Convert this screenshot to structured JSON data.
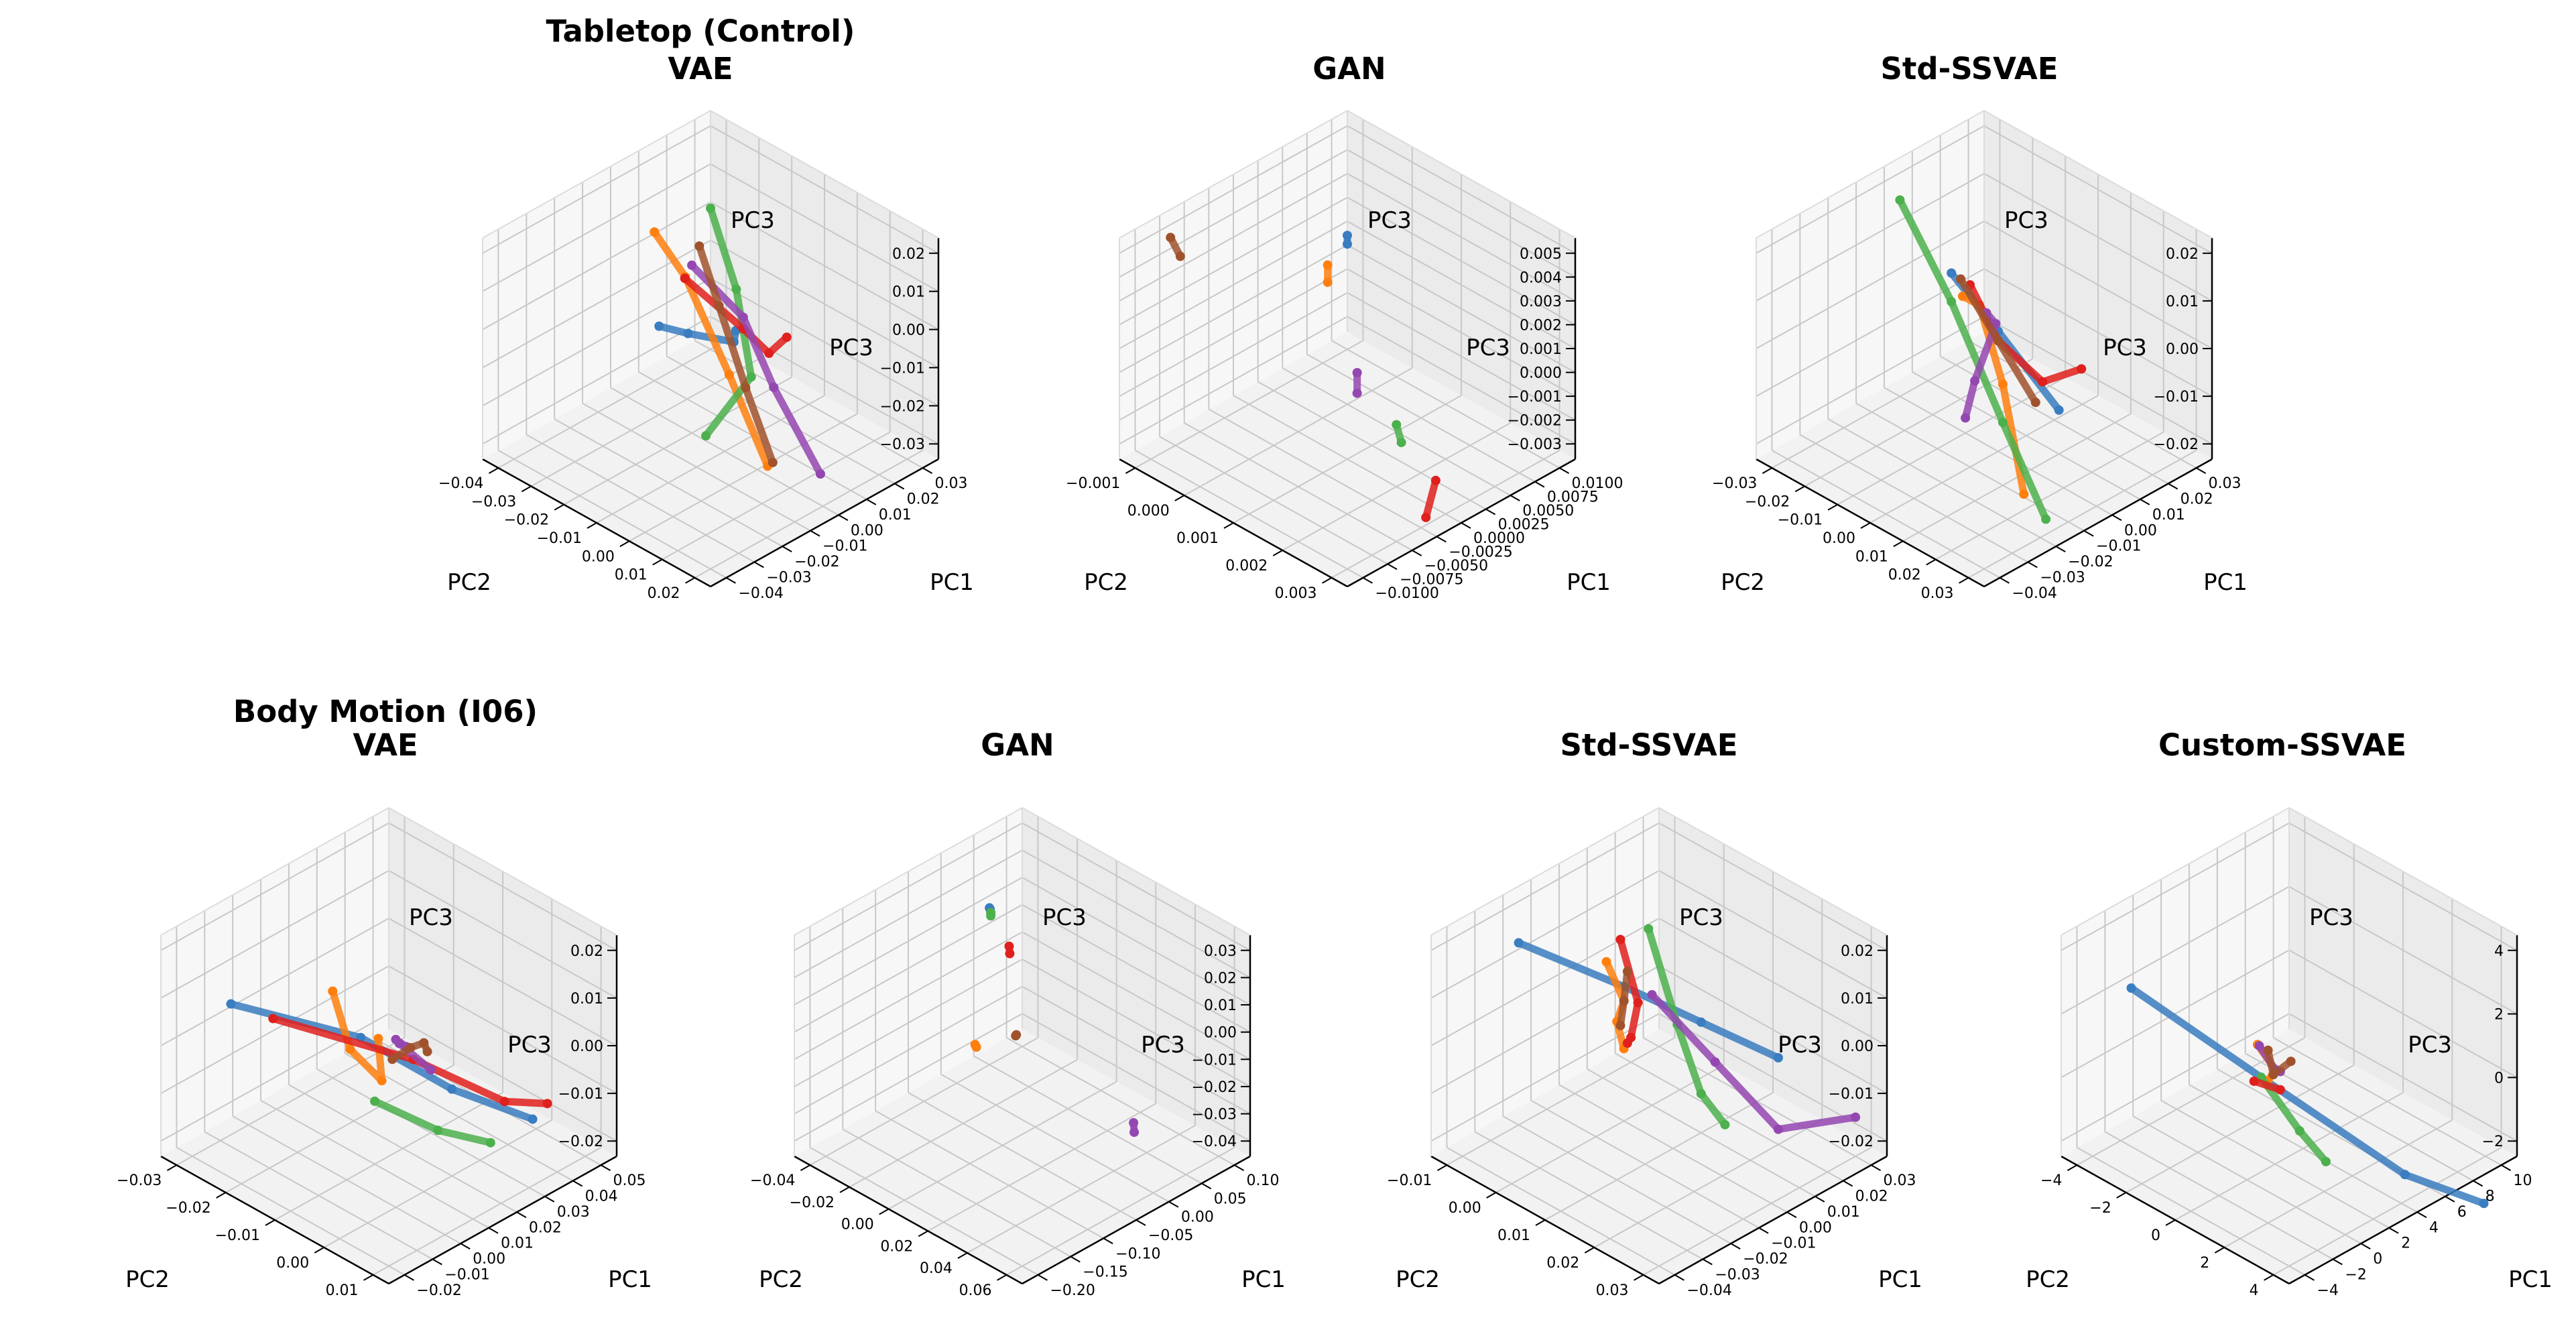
{
  "figure": {
    "row_titles": [
      "Tabletop (Control)",
      "Body Motion (I06)"
    ]
  },
  "colors": {
    "c0": "#3a7dc0",
    "c1": "#ff7f0e",
    "c2": "#4cb04c",
    "c3": "#e0201c",
    "c4": "#9447b0",
    "c5": "#a0522d",
    "pane": "#f2f2f2",
    "grid": "#c8c8c8"
  },
  "chart_data": [
    {
      "type": "scatter",
      "title": "VAE",
      "row_title": "Tabletop (Control)",
      "xlabel": "PC1",
      "ylabel": "PC2",
      "zlabel": "PC3",
      "pc1_ticks": [
        "0.03",
        "0.02",
        "0.01",
        "0.00",
        "−0.01",
        "−0.02",
        "−0.03",
        "−0.04"
      ],
      "pc2_ticks": [
        "−0.04",
        "−0.03",
        "−0.02",
        "−0.01",
        "0.00",
        "0.01",
        "0.02"
      ],
      "pc3_ticks": [
        "0.02",
        "0.01",
        "0.00",
        "−0.01",
        "−0.02",
        "−0.03"
      ],
      "series": [
        {
          "color": "c0",
          "points": [
            [
              -0.035,
              0.0,
              0.018
            ],
            [
              -0.02,
              -0.004,
              0.008
            ],
            [
              -0.006,
              -0.002,
              0.001
            ],
            [
              0.004,
              -0.01,
              -0.004
            ]
          ]
        },
        {
          "color": "c1",
          "points": [
            [
              0.01,
              -0.04,
              0.005
            ],
            [
              0.0,
              -0.022,
              0.006
            ],
            [
              -0.01,
              0.0,
              -0.005
            ],
            [
              -0.008,
              0.01,
              -0.025
            ]
          ]
        },
        {
          "color": "c2",
          "points": [
            [
              0.03,
              -0.04,
              0.003
            ],
            [
              0.01,
              -0.015,
              0.002
            ],
            [
              -0.008,
              0.005,
              -0.004
            ],
            [
              -0.03,
              0.01,
              -0.008
            ]
          ]
        },
        {
          "color": "c3",
          "points": [
            [
              -0.02,
              -0.005,
              0.022
            ],
            [
              -0.005,
              0.0,
              0.005
            ],
            [
              0.01,
              -0.005,
              -0.01
            ],
            [
              0.028,
              -0.015,
              -0.018
            ]
          ]
        },
        {
          "color": "c4",
          "points": [
            [
              0.0,
              -0.02,
              0.01
            ],
            [
              -0.005,
              0.0,
              0.008
            ],
            [
              0.0,
              0.005,
              -0.01
            ],
            [
              0.005,
              0.015,
              -0.03
            ]
          ]
        },
        {
          "color": "c5",
          "points": [
            [
              0.005,
              -0.022,
              0.012
            ],
            [
              -0.002,
              -0.01,
              0.005
            ],
            [
              -0.01,
              0.005,
              -0.006
            ],
            [
              -0.012,
              0.015,
              -0.02
            ]
          ]
        }
      ]
    },
    {
      "type": "scatter",
      "title": "GAN",
      "row_title": "",
      "xlabel": "PC1",
      "ylabel": "PC2",
      "zlabel": "PC3",
      "pc1_ticks": [
        "0.0100",
        "0.0075",
        "0.0050",
        "0.0025",
        "0.0000",
        "−0.0025",
        "−0.0050",
        "−0.0075",
        "−0.0100"
      ],
      "pc2_ticks": [
        "−0.001",
        "0.000",
        "0.001",
        "0.002",
        "0.003"
      ],
      "pc3_ticks": [
        "0.005",
        "0.004",
        "0.003",
        "0.002",
        "0.001",
        "0.000",
        "−0.001",
        "−0.002",
        "−0.003"
      ],
      "series": [
        {
          "color": "c0",
          "points": [
            [
              0.009,
              -0.0008,
              0.0016
            ],
            [
              0.008,
              -0.0006,
              0.0017
            ]
          ]
        },
        {
          "color": "c1",
          "points": [
            [
              0.004,
              -0.0002,
              0.0022
            ],
            [
              0.002,
              0.0002,
              0.0024
            ]
          ]
        },
        {
          "color": "c2",
          "points": [
            [
              -0.004,
              0.0028,
              0.0008
            ],
            [
              -0.0045,
              0.003,
              0.0004
            ]
          ]
        },
        {
          "color": "c3",
          "points": [
            [
              -0.001,
              0.003,
              -0.002
            ],
            [
              -0.004,
              0.0034,
              -0.0024
            ]
          ]
        },
        {
          "color": "c4",
          "points": [
            [
              -0.003,
              0.0018,
              0.0016
            ],
            [
              -0.004,
              0.002,
              0.0012
            ]
          ]
        },
        {
          "color": "c5",
          "points": [
            [
              -0.008,
              -0.001,
              0.0052
            ],
            [
              -0.009,
              -0.0006,
              0.0051
            ]
          ]
        }
      ]
    },
    {
      "type": "scatter",
      "title": "Std-SSVAE",
      "row_title": "",
      "xlabel": "PC1",
      "ylabel": "PC2",
      "zlabel": "PC3",
      "pc1_ticks": [
        "0.03",
        "0.02",
        "0.01",
        "0.00",
        "−0.01",
        "−0.02",
        "−0.03",
        "−0.04"
      ],
      "pc2_ticks": [
        "−0.03",
        "−0.02",
        "−0.01",
        "0.00",
        "0.01",
        "0.02",
        "0.03"
      ],
      "pc3_ticks": [
        "0.02",
        "0.01",
        "0.00",
        "−0.01",
        "−0.02"
      ],
      "series": [
        {
          "color": "c0",
          "points": [
            [
              -0.005,
              -0.01,
              0.012
            ],
            [
              0.0,
              0.0,
              0.002
            ],
            [
              0.01,
              0.01,
              -0.014
            ]
          ]
        },
        {
          "color": "c1",
          "points": [
            [
              0.02,
              -0.028,
              -0.008
            ],
            [
              0.005,
              -0.01,
              0.002
            ],
            [
              -0.01,
              0.01,
              -0.002
            ],
            [
              -0.02,
              0.025,
              -0.016
            ]
          ]
        },
        {
          "color": "c2",
          "points": [
            [
              0.0,
              -0.03,
              0.018
            ],
            [
              -0.005,
              -0.01,
              0.006
            ],
            [
              -0.01,
              0.01,
              -0.01
            ],
            [
              -0.018,
              0.03,
              -0.02
            ]
          ]
        },
        {
          "color": "c3",
          "points": [
            [
              -0.01,
              0.0,
              0.015
            ],
            [
              0.0,
              0.0,
              0.0
            ],
            [
              0.01,
              0.005,
              -0.01
            ],
            [
              0.018,
              0.01,
              -0.008
            ]
          ]
        },
        {
          "color": "c4",
          "points": [
            [
              0.025,
              -0.025,
              -0.012
            ],
            [
              0.005,
              -0.005,
              0.0
            ],
            [
              -0.02,
              0.01,
              0.002
            ],
            [
              -0.035,
              0.02,
              0.003
            ]
          ]
        },
        {
          "color": "c5",
          "points": [
            [
              -0.025,
              0.01,
              0.025
            ],
            [
              0.0,
              0.0,
              0.0
            ],
            [
              0.025,
              -0.01,
              -0.025
            ]
          ]
        }
      ]
    },
    {
      "type": "scatter",
      "title": "VAE",
      "row_title": "Body Motion (I06)",
      "xlabel": "PC1",
      "ylabel": "PC2",
      "zlabel": "PC3",
      "pc1_ticks": [
        "0.05",
        "0.04",
        "0.03",
        "0.02",
        "0.01",
        "0.00",
        "−0.01",
        "−0.02"
      ],
      "pc2_ticks": [
        "−0.03",
        "−0.02",
        "−0.01",
        "0.00",
        "0.01"
      ],
      "pc3_ticks": [
        "0.02",
        "0.01",
        "0.00",
        "−0.01",
        "−0.02"
      ],
      "series": [
        {
          "color": "c0",
          "points": [
            [
              -0.015,
              -0.025,
              0.01
            ],
            [
              0.005,
              -0.01,
              0.005
            ],
            [
              0.02,
              0.0,
              -0.005
            ],
            [
              0.04,
              0.005,
              -0.015
            ]
          ]
        },
        {
          "color": "c1",
          "points": [
            [
              0.03,
              -0.03,
              -0.005
            ],
            [
              0.01,
              -0.015,
              -0.002
            ],
            [
              -0.005,
              0.0,
              0.005
            ],
            [
              -0.015,
              0.005,
              0.02
            ]
          ]
        },
        {
          "color": "c2",
          "points": [
            [
              0.01,
              -0.01,
              -0.01
            ],
            [
              0.015,
              0.0,
              -0.012
            ],
            [
              0.025,
              0.005,
              -0.015
            ]
          ]
        },
        {
          "color": "c3",
          "points": [
            [
              0.0,
              -0.025,
              0.002
            ],
            [
              0.015,
              -0.005,
              0.0
            ],
            [
              0.03,
              0.005,
              -0.008
            ],
            [
              0.04,
              0.008,
              -0.01
            ]
          ]
        },
        {
          "color": "c4",
          "points": [
            [
              0.03,
              -0.01,
              -0.01
            ],
            [
              0.01,
              -0.005,
              0.005
            ],
            [
              0.0,
              0.0,
              0.012
            ],
            [
              -0.005,
              0.005,
              0.015
            ]
          ]
        },
        {
          "color": "c5",
          "points": [
            [
              0.02,
              -0.005,
              0.0
            ],
            [
              0.01,
              0.0,
              0.008
            ],
            [
              0.0,
              0.003,
              0.012
            ],
            [
              -0.01,
              0.005,
              0.014
            ]
          ]
        }
      ]
    },
    {
      "type": "scatter",
      "title": "GAN",
      "row_title": "",
      "xlabel": "PC1",
      "ylabel": "PC2",
      "zlabel": "PC3",
      "pc1_ticks": [
        "0.10",
        "0.05",
        "0.00",
        "−0.05",
        "−0.10",
        "−0.15",
        "−0.20"
      ],
      "pc2_ticks": [
        "−0.04",
        "−0.02",
        "0.00",
        "0.02",
        "0.04",
        "0.06"
      ],
      "pc3_ticks": [
        "0.03",
        "0.02",
        "0.01",
        "0.00",
        "−0.01",
        "−0.02",
        "−0.03",
        "−0.04"
      ],
      "series": [
        {
          "color": "c0",
          "points": [
            [
              0.05,
              -0.04,
              0.012
            ],
            [
              0.045,
              -0.038,
              0.013
            ]
          ]
        },
        {
          "color": "c1",
          "points": [
            [
              -0.18,
              0.03,
              0.02
            ],
            [
              -0.185,
              0.031,
              0.022
            ]
          ]
        },
        {
          "color": "c2",
          "points": [
            [
              0.055,
              -0.041,
              0.008
            ],
            [
              0.052,
              -0.04,
              0.01
            ]
          ]
        },
        {
          "color": "c3",
          "points": [
            [
              0.02,
              -0.02,
              0.01
            ],
            [
              0.018,
              -0.019,
              0.008
            ]
          ]
        },
        {
          "color": "c4",
          "points": [
            [
              0.06,
              0.03,
              -0.04
            ],
            [
              0.055,
              0.032,
              -0.042
            ]
          ]
        },
        {
          "color": "c5",
          "points": [
            [
              -0.06,
              0.01,
              0.0
            ],
            [
              -0.062,
              0.011,
              0.001
            ]
          ]
        }
      ]
    },
    {
      "type": "scatter",
      "title": "Std-SSVAE",
      "row_title": "",
      "xlabel": "PC1",
      "ylabel": "PC2",
      "zlabel": "PC3",
      "pc1_ticks": [
        "0.03",
        "0.02",
        "0.01",
        "0.00",
        "−0.01",
        "−0.02",
        "−0.03",
        "−0.04"
      ],
      "pc2_ticks": [
        "−0.01",
        "0.00",
        "0.01",
        "0.02",
        "0.03"
      ],
      "pc3_ticks": [
        "0.02",
        "0.01",
        "0.00",
        "−0.01",
        "−0.02"
      ],
      "series": [
        {
          "color": "c0",
          "points": [
            [
              -0.02,
              -0.01,
              0.015
            ],
            [
              0.0,
              0.0,
              0.005
            ],
            [
              0.01,
              0.01,
              0.0
            ],
            [
              0.02,
              0.02,
              -0.005
            ]
          ]
        },
        {
          "color": "c1",
          "points": [
            [
              0.02,
              -0.015,
              -0.005
            ],
            [
              0.0,
              0.0,
              0.002
            ],
            [
              -0.02,
              0.01,
              0.01
            ],
            [
              -0.035,
              0.02,
              0.015
            ]
          ]
        },
        {
          "color": "c2",
          "points": [
            [
              0.0,
              0.005,
              0.02
            ],
            [
              0.005,
              0.008,
              0.0
            ],
            [
              0.01,
              0.01,
              -0.015
            ],
            [
              0.015,
              0.012,
              -0.022
            ]
          ]
        },
        {
          "color": "c3",
          "points": [
            [
              0.025,
              -0.015,
              -0.002
            ],
            [
              0.005,
              0.0,
              0.0
            ],
            [
              -0.015,
              0.01,
              0.005
            ],
            [
              -0.025,
              0.015,
              0.01
            ]
          ]
        },
        {
          "color": "c4",
          "points": [
            [
              0.01,
              0.0,
              0.0
            ],
            [
              0.015,
              0.01,
              -0.01
            ],
            [
              0.02,
              0.02,
              -0.02
            ],
            [
              0.03,
              0.03,
              -0.015
            ]
          ]
        },
        {
          "color": "c5",
          "points": [
            [
              0.01,
              -0.005,
              0.002
            ],
            [
              0.0,
              0.0,
              0.002
            ],
            [
              -0.01,
              0.005,
              0.003
            ]
          ]
        }
      ]
    },
    {
      "type": "scatter",
      "title": "Custom-SSVAE",
      "row_title": "",
      "xlabel": "PC1",
      "ylabel": "PC2",
      "zlabel": "PC3",
      "pc1_ticks": [
        "10",
        "8",
        "6",
        "4",
        "2",
        "0",
        "−2",
        "−4"
      ],
      "pc2_ticks": [
        "−4",
        "−2",
        "0",
        "2",
        "4"
      ],
      "pc3_ticks": [
        "4",
        "2",
        "0",
        "−2"
      ],
      "series": [
        {
          "color": "c0",
          "points": [
            [
              -3.0,
              -3.0,
              3.0
            ],
            [
              1.0,
              0.0,
              0.5
            ],
            [
              6.0,
              3.0,
              -2.5
            ],
            [
              9.0,
              4.5,
              -3.5
            ]
          ]
        },
        {
          "color": "c1",
          "points": [
            [
              6.0,
              -3.0,
              -1.0
            ],
            [
              2.0,
              0.0,
              0.5
            ],
            [
              -2.0,
              2.0,
              2.0
            ]
          ]
        },
        {
          "color": "c2",
          "points": [
            [
              1.0,
              0.0,
              0.5
            ],
            [
              2.0,
              1.0,
              -1.0
            ],
            [
              3.0,
              1.5,
              -2.0
            ]
          ]
        },
        {
          "color": "c3",
          "points": [
            [
              0.5,
              0.0,
              0.5
            ],
            [
              1.5,
              0.5,
              0.2
            ]
          ]
        },
        {
          "color": "c4",
          "points": [
            [
              7.0,
              -3.5,
              -1.5
            ],
            [
              2.0,
              0.0,
              0.5
            ],
            [
              -2.0,
              2.5,
              2.5
            ]
          ]
        },
        {
          "color": "c5",
          "points": [
            [
              5.0,
              -2.0,
              -0.5
            ],
            [
              1.0,
              0.5,
              0.8
            ],
            [
              -3.0,
              3.5,
              3.5
            ]
          ]
        }
      ]
    }
  ]
}
